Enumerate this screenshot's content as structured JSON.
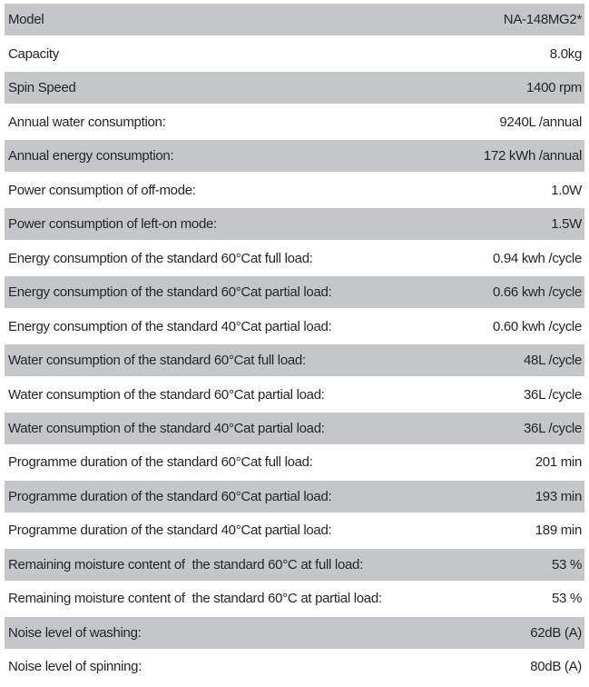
{
  "title": "Washing machine specification table",
  "colors": {
    "row_gray": "#c5c6c7",
    "row_white": "#ffffff",
    "text": "#232629"
  },
  "table": {
    "rows": [
      {
        "label": "Model",
        "value": "NA-148MG2*"
      },
      {
        "label": "Capacity",
        "value": "8.0kg"
      },
      {
        "label": "Spin Speed",
        "value": "1400 rpm"
      },
      {
        "label": "Annual water consumption:",
        "value": "9240L /annual"
      },
      {
        "label": "Annual energy consumption:",
        "value": "172 kWh /annual"
      },
      {
        "label": "Power consumption of off-mode:",
        "value": "1.0W"
      },
      {
        "label": "Power consumption of left-on mode:",
        "value": "1.5W"
      },
      {
        "label": "Energy consumption of the standard 60°Cat full load:",
        "value": "0.94 kwh /cycle"
      },
      {
        "label": "Energy consumption of the standard 60°Cat partial load:",
        "value": "0.66 kwh /cycle"
      },
      {
        "label": "Energy consumption of the standard 40°Cat partial load:",
        "value": "0.60 kwh /cycle"
      },
      {
        "label": "Water consumption of the standard 60°Cat full load:",
        "value": "48L /cycle"
      },
      {
        "label": "Water consumption of the standard 60°Cat partial load:",
        "value": "36L /cycle"
      },
      {
        "label": "Water consumption of the standard 40°Cat partial load:",
        "value": "36L /cycle"
      },
      {
        "label": "Programme duration of the standard 60°Cat full load:",
        "value": "201 min"
      },
      {
        "label": "Programme duration of the standard 60°Cat partial load:",
        "value": "193 min"
      },
      {
        "label": "Programme duration of the standard 40°Cat partial load:",
        "value": "189 min"
      },
      {
        "label": "Remaining moisture content of  the standard 60°C at full load:",
        "value": "53 %"
      },
      {
        "label": "Remaining moisture content of  the standard 60°C at partial load:",
        "value": "53 %"
      },
      {
        "label": "Noise level of washing:",
        "value": "62dB (A)"
      },
      {
        "label": "Noise level of spinning:",
        "value": "80dB (A)"
      }
    ]
  }
}
